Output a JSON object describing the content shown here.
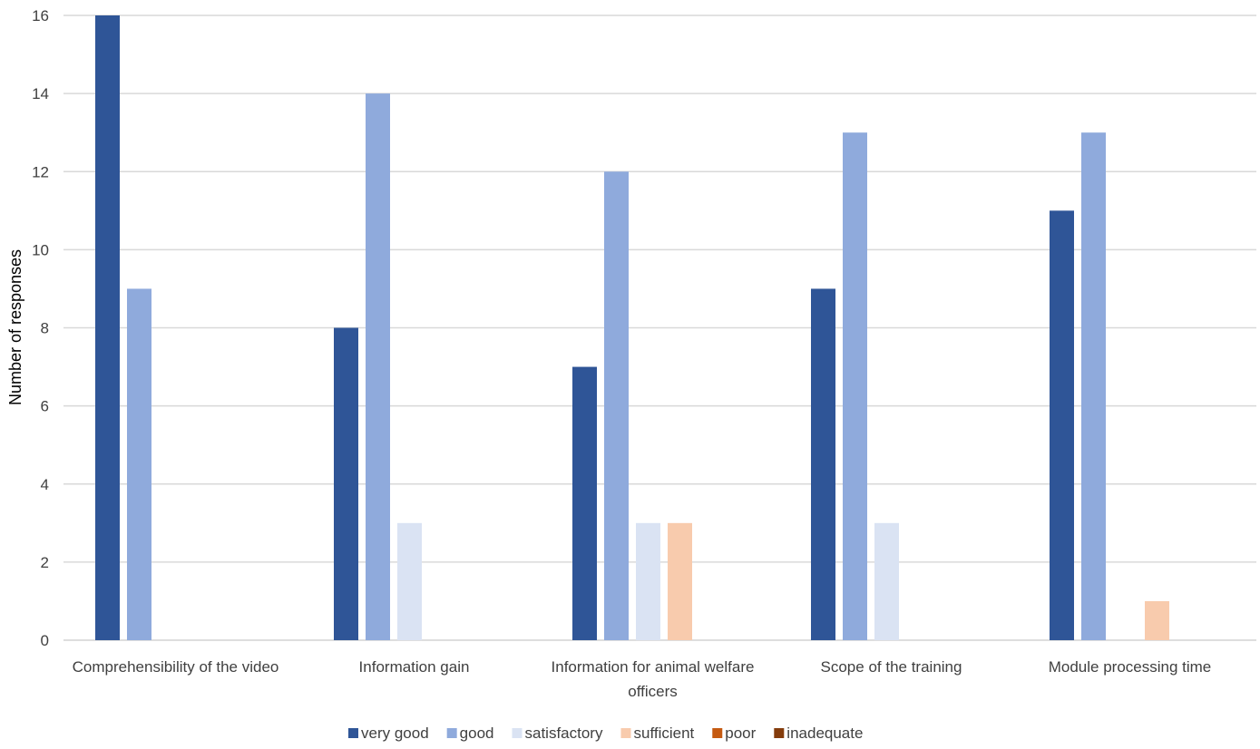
{
  "chart_data": {
    "type": "bar",
    "title": "",
    "xlabel": "",
    "ylabel": "Number of responses",
    "ylim": [
      0,
      16
    ],
    "yticks": [
      0,
      2,
      4,
      6,
      8,
      10,
      12,
      14,
      16
    ],
    "grid": true,
    "legend_position": "bottom",
    "categories": [
      [
        "Comprehensibility of the video"
      ],
      [
        "Information gain"
      ],
      [
        "Information for animal welfare",
        "officers"
      ],
      [
        "Scope of the training"
      ],
      [
        "Module processing time"
      ]
    ],
    "series": [
      {
        "name": "very good",
        "color": "#2F5597",
        "values": [
          16,
          8,
          7,
          9,
          11
        ]
      },
      {
        "name": "good",
        "color": "#8FAADC",
        "values": [
          9,
          14,
          12,
          13,
          13
        ]
      },
      {
        "name": "satisfactory",
        "color": "#DAE3F3",
        "values": [
          0,
          3,
          3,
          3,
          0
        ]
      },
      {
        "name": "sufficient",
        "color": "#F8CBAD",
        "values": [
          0,
          0,
          3,
          0,
          1
        ]
      },
      {
        "name": "poor",
        "color": "#C55A11",
        "values": [
          0,
          0,
          0,
          0,
          0
        ]
      },
      {
        "name": "inadequate",
        "color": "#843C0C",
        "values": [
          0,
          0,
          0,
          0,
          0
        ]
      }
    ]
  }
}
